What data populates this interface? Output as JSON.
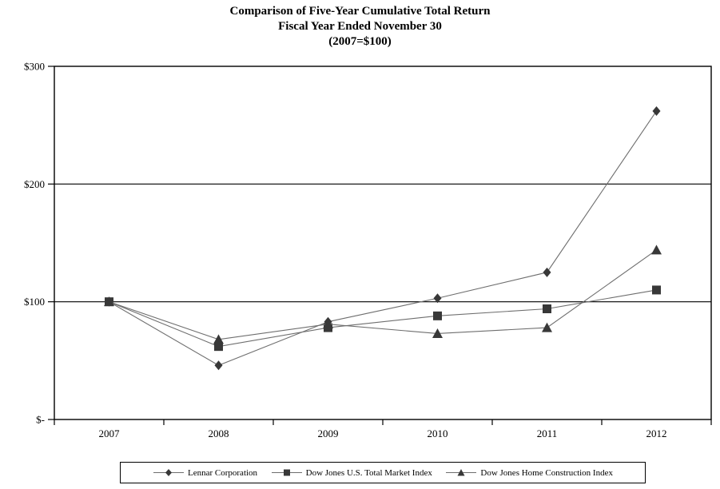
{
  "title": {
    "line1": "Comparison of Five-Year Cumulative Total Return",
    "line2": "Fiscal Year Ended November 30",
    "line3": "(2007=$100)"
  },
  "chart_data": {
    "type": "line",
    "categories": [
      "2007",
      "2008",
      "2009",
      "2010",
      "2011",
      "2012"
    ],
    "series": [
      {
        "name": "Lennar Corporation",
        "marker": "diamond",
        "values": [
          100,
          46,
          83,
          103,
          125,
          262
        ]
      },
      {
        "name": "Dow Jones U.S. Total Market Index",
        "marker": "square",
        "values": [
          100,
          62,
          78,
          88,
          94,
          110
        ]
      },
      {
        "name": "Dow Jones Home Construction Index",
        "marker": "triangle",
        "values": [
          100,
          68,
          81,
          73,
          78,
          144
        ]
      }
    ],
    "ylim": [
      0,
      300
    ],
    "y_ticks": [
      {
        "value": 0,
        "label": "$-"
      },
      {
        "value": 100,
        "label": "$100"
      },
      {
        "value": 200,
        "label": "$200"
      },
      {
        "value": 300,
        "label": "$300"
      }
    ],
    "grid": "horizontal",
    "legend_position": "bottom",
    "colors": {
      "line": "#6e6e6e",
      "marker": "#383838",
      "axis": "#000000",
      "background": "#ffffff"
    }
  }
}
